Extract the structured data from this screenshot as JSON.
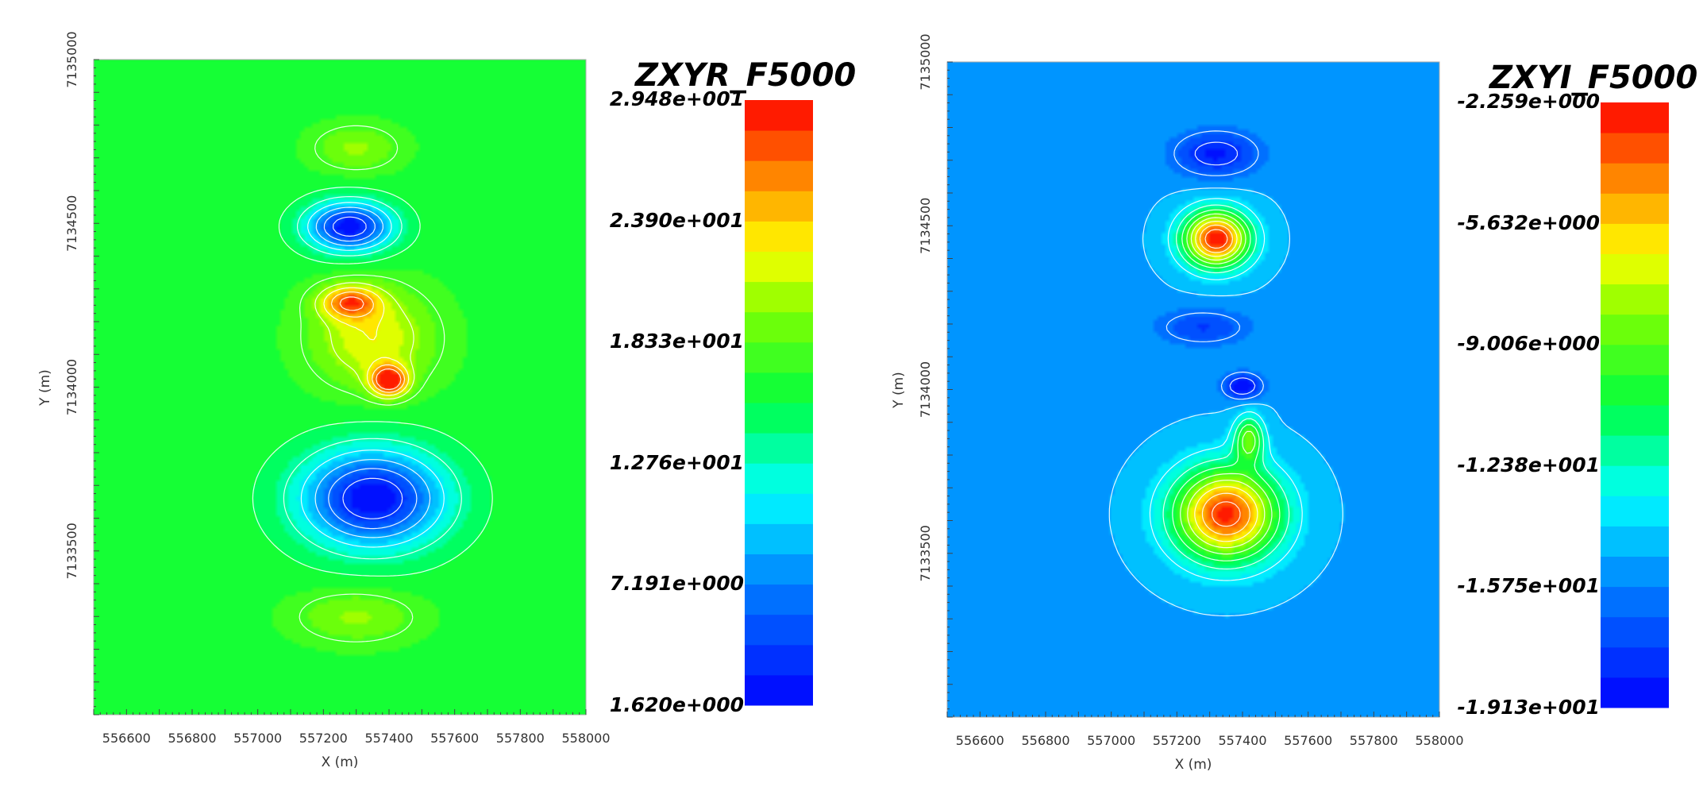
{
  "chart_data": [
    {
      "type": "heatmap",
      "title": "ZXYR_F5000",
      "xlabel": "X (m)",
      "ylabel": "Y (m)",
      "xlim": [
        556500,
        558000
      ],
      "ylim": [
        7133000,
        7135000
      ],
      "x_ticks": [
        "556600",
        "556800",
        "557000",
        "557200",
        "557400",
        "557600",
        "557800",
        "558000"
      ],
      "x_tick_values": [
        556600,
        556800,
        557000,
        557200,
        557400,
        557600,
        557800,
        558000
      ],
      "y_ticks": [
        "7133500",
        "7134000",
        "7134500",
        "7135000"
      ],
      "y_tick_values": [
        7133500,
        7134000,
        7134500,
        7135000
      ],
      "colorbar": {
        "min": 1.62,
        "max": 29.48,
        "labels": [
          "2.948e+001",
          "2.390e+001",
          "1.833e+001",
          "1.276e+001",
          "7.191e+000",
          "1.620e+000"
        ]
      },
      "background_value": 16.5,
      "anomalies": [
        {
          "x": 557280,
          "y": 7134260,
          "value": 25.5,
          "sx": 90,
          "sy": 50
        },
        {
          "x": 557400,
          "y": 7134020,
          "value": 29.48,
          "sx": 55,
          "sy": 45
        },
        {
          "x": 557350,
          "y": 7134150,
          "value": 22.5,
          "sx": 180,
          "sy": 150
        },
        {
          "x": 557280,
          "y": 7134490,
          "value": 1.8,
          "sx": 130,
          "sy": 75
        },
        {
          "x": 557350,
          "y": 7133660,
          "value": 1.62,
          "sx": 220,
          "sy": 150
        },
        {
          "x": 557300,
          "y": 7134730,
          "value": 20.0,
          "sx": 130,
          "sy": 70
        },
        {
          "x": 557300,
          "y": 7133300,
          "value": 20.0,
          "sx": 180,
          "sy": 80
        }
      ]
    },
    {
      "type": "heatmap",
      "title": "ZXYI_F5000",
      "xlabel": "X (m)",
      "ylabel": "Y (m)",
      "xlim": [
        556500,
        558000
      ],
      "ylim": [
        7133000,
        7135000
      ],
      "x_ticks": [
        "556600",
        "556800",
        "557000",
        "557200",
        "557400",
        "557600",
        "557800",
        "558000"
      ],
      "x_tick_values": [
        556600,
        556800,
        557000,
        557200,
        557400,
        557600,
        557800,
        558000
      ],
      "y_ticks": [
        "7133500",
        "7134000",
        "7134500",
        "7135000"
      ],
      "y_tick_values": [
        7133500,
        7134000,
        7134500,
        7135000
      ],
      "colorbar": {
        "min": -19.13,
        "max": -2.259,
        "labels": [
          "-2.259e+000",
          "-5.632e+000",
          "-9.006e+000",
          "-1.238e+001",
          "-1.575e+001",
          "-1.913e+001"
        ]
      },
      "background_value": -15.0,
      "anomalies": [
        {
          "x": 557320,
          "y": 7134460,
          "value": -2.259,
          "sx": 100,
          "sy": 85
        },
        {
          "x": 557350,
          "y": 7133620,
          "value": -2.8,
          "sx": 160,
          "sy": 140
        },
        {
          "x": 557320,
          "y": 7134720,
          "value": -18.5,
          "sx": 130,
          "sy": 70
        },
        {
          "x": 557400,
          "y": 7134010,
          "value": -19.13,
          "sx": 60,
          "sy": 40
        },
        {
          "x": 557280,
          "y": 7134190,
          "value": -17.5,
          "sx": 140,
          "sy": 55
        },
        {
          "x": 557420,
          "y": 7133850,
          "value": -9.0,
          "sx": 45,
          "sy": 70
        }
      ]
    }
  ]
}
